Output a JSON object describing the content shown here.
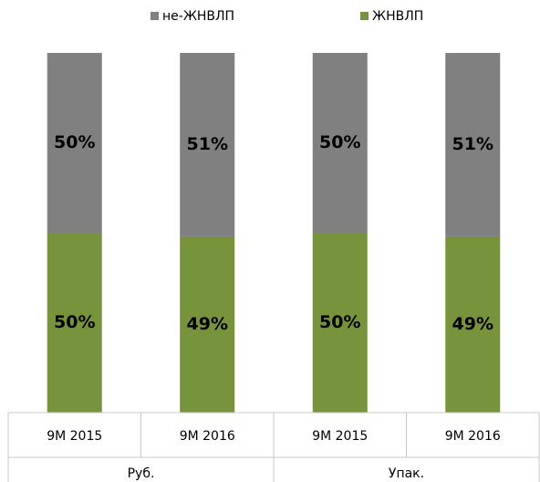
{
  "chart_data": {
    "type": "stacked_bar",
    "categories": [
      "9M 2015",
      "9M 2016",
      "9M 2015",
      "9M 2016"
    ],
    "groups": [
      {
        "name": "Руб.",
        "span": 2
      },
      {
        "name": "Упак.",
        "span": 2
      }
    ],
    "series": [
      {
        "name": "не-ЖНВЛП",
        "color": "#808080",
        "values": [
          50,
          51,
          50,
          51
        ],
        "value_labels": [
          "50%",
          "51%",
          "50%",
          "51%"
        ]
      },
      {
        "name": "ЖНВЛП",
        "color": "#77933c",
        "values": [
          50,
          49,
          50,
          49
        ],
        "value_labels": [
          "50%",
          "49%",
          "50%",
          "49%"
        ]
      }
    ],
    "ylim": [
      0,
      100
    ]
  }
}
